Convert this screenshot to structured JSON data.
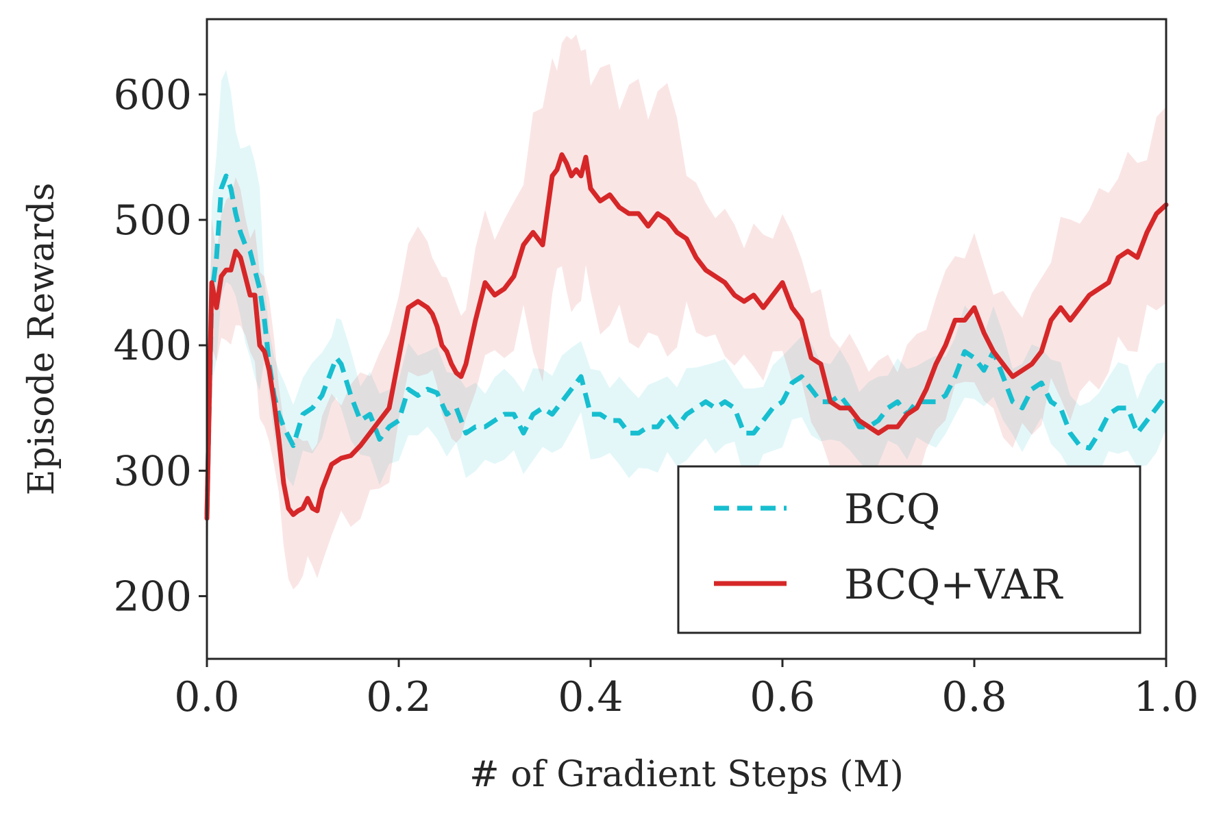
{
  "chart_data": {
    "type": "line",
    "title": "",
    "xlabel": "# of Gradient Steps (M)",
    "ylabel": "Episode Rewards",
    "xlim": [
      0.0,
      1.0
    ],
    "ylim": [
      150,
      660
    ],
    "xticks": [
      0.0,
      0.2,
      0.4,
      0.6,
      0.8,
      1.0
    ],
    "xtick_labels": [
      "0.0",
      "0.2",
      "0.4",
      "0.6",
      "0.8",
      "1.0"
    ],
    "yticks": [
      200,
      300,
      400,
      500,
      600
    ],
    "ytick_labels": [
      "200",
      "300",
      "400",
      "500",
      "600"
    ],
    "grid": false,
    "legend_position": "lower-right",
    "series": [
      {
        "name": "BCQ",
        "color": "#17becf",
        "style": "dashed",
        "x": [
          0.0,
          0.005,
          0.01,
          0.015,
          0.02,
          0.025,
          0.03,
          0.035,
          0.04,
          0.045,
          0.05,
          0.055,
          0.06,
          0.065,
          0.07,
          0.075,
          0.08,
          0.09,
          0.1,
          0.11,
          0.12,
          0.13,
          0.135,
          0.14,
          0.15,
          0.16,
          0.17,
          0.18,
          0.19,
          0.2,
          0.21,
          0.22,
          0.23,
          0.24,
          0.25,
          0.26,
          0.27,
          0.28,
          0.29,
          0.3,
          0.31,
          0.32,
          0.33,
          0.34,
          0.35,
          0.36,
          0.37,
          0.38,
          0.39,
          0.4,
          0.41,
          0.42,
          0.43,
          0.44,
          0.45,
          0.46,
          0.47,
          0.48,
          0.49,
          0.5,
          0.51,
          0.52,
          0.53,
          0.54,
          0.55,
          0.56,
          0.57,
          0.58,
          0.59,
          0.6,
          0.61,
          0.62,
          0.63,
          0.64,
          0.65,
          0.66,
          0.67,
          0.68,
          0.69,
          0.7,
          0.71,
          0.72,
          0.73,
          0.74,
          0.75,
          0.76,
          0.77,
          0.78,
          0.79,
          0.8,
          0.81,
          0.82,
          0.83,
          0.84,
          0.85,
          0.86,
          0.87,
          0.88,
          0.89,
          0.9,
          0.91,
          0.92,
          0.93,
          0.94,
          0.95,
          0.96,
          0.97,
          0.98,
          0.99,
          1.0
        ],
        "y": [
          265,
          440,
          470,
          525,
          535,
          525,
          505,
          490,
          480,
          475,
          460,
          445,
          420,
          385,
          360,
          345,
          335,
          320,
          345,
          350,
          360,
          380,
          390,
          385,
          360,
          340,
          345,
          325,
          335,
          340,
          365,
          360,
          365,
          362,
          345,
          350,
          330,
          335,
          335,
          340,
          345,
          345,
          330,
          345,
          350,
          345,
          355,
          365,
          375,
          345,
          345,
          340,
          340,
          330,
          330,
          335,
          335,
          345,
          335,
          345,
          350,
          355,
          350,
          355,
          350,
          330,
          330,
          340,
          350,
          355,
          370,
          375,
          365,
          355,
          355,
          360,
          350,
          335,
          335,
          340,
          350,
          355,
          345,
          355,
          355,
          355,
          360,
          375,
          395,
          390,
          380,
          395,
          375,
          355,
          350,
          365,
          370,
          355,
          350,
          330,
          320,
          318,
          330,
          345,
          350,
          350,
          330,
          340,
          350,
          360
        ]
      },
      {
        "name": "BCQ+VAR",
        "color": "#d62728",
        "style": "solid",
        "x": [
          0.0,
          0.005,
          0.01,
          0.015,
          0.02,
          0.025,
          0.03,
          0.035,
          0.04,
          0.045,
          0.05,
          0.055,
          0.06,
          0.065,
          0.07,
          0.075,
          0.08,
          0.085,
          0.09,
          0.095,
          0.1,
          0.105,
          0.11,
          0.115,
          0.12,
          0.13,
          0.14,
          0.15,
          0.16,
          0.17,
          0.18,
          0.19,
          0.2,
          0.21,
          0.22,
          0.23,
          0.235,
          0.24,
          0.245,
          0.25,
          0.255,
          0.26,
          0.265,
          0.27,
          0.28,
          0.29,
          0.3,
          0.31,
          0.32,
          0.33,
          0.34,
          0.35,
          0.36,
          0.365,
          0.37,
          0.375,
          0.38,
          0.385,
          0.39,
          0.395,
          0.4,
          0.41,
          0.42,
          0.43,
          0.44,
          0.45,
          0.46,
          0.47,
          0.48,
          0.49,
          0.5,
          0.51,
          0.52,
          0.53,
          0.54,
          0.55,
          0.56,
          0.57,
          0.58,
          0.59,
          0.6,
          0.61,
          0.62,
          0.63,
          0.64,
          0.65,
          0.66,
          0.67,
          0.68,
          0.69,
          0.7,
          0.71,
          0.72,
          0.73,
          0.74,
          0.75,
          0.76,
          0.77,
          0.78,
          0.79,
          0.8,
          0.81,
          0.82,
          0.83,
          0.84,
          0.85,
          0.86,
          0.87,
          0.88,
          0.89,
          0.9,
          0.91,
          0.92,
          0.93,
          0.94,
          0.95,
          0.96,
          0.97,
          0.98,
          0.99,
          1.0
        ],
        "y": [
          262,
          450,
          430,
          455,
          460,
          460,
          475,
          470,
          455,
          440,
          440,
          400,
          395,
          380,
          355,
          325,
          290,
          270,
          265,
          268,
          270,
          278,
          270,
          268,
          285,
          305,
          310,
          312,
          320,
          330,
          340,
          350,
          390,
          430,
          435,
          430,
          425,
          415,
          400,
          395,
          385,
          378,
          375,
          385,
          420,
          450,
          440,
          445,
          455,
          480,
          490,
          480,
          535,
          540,
          552,
          545,
          535,
          540,
          535,
          550,
          525,
          515,
          520,
          510,
          505,
          505,
          495,
          505,
          500,
          490,
          485,
          470,
          460,
          455,
          450,
          440,
          435,
          440,
          430,
          440,
          450,
          430,
          420,
          390,
          385,
          355,
          350,
          350,
          340,
          335,
          330,
          335,
          335,
          345,
          350,
          365,
          385,
          400,
          420,
          420,
          430,
          410,
          395,
          385,
          375,
          380,
          385,
          395,
          420,
          430,
          420,
          430,
          440,
          445,
          450,
          470,
          475,
          470,
          490,
          505,
          512
        ]
      }
    ]
  }
}
